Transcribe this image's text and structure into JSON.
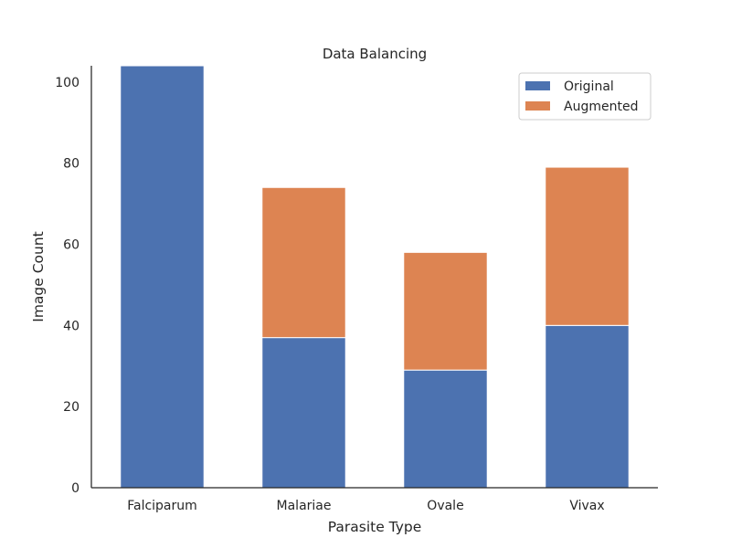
{
  "chart_data": {
    "type": "bar",
    "stacked": true,
    "title": "Data Balancing",
    "xlabel": "Parasite Type",
    "ylabel": "Image Count",
    "categories": [
      "Falciparum",
      "Malariae",
      "Ovale",
      "Vivax"
    ],
    "series": [
      {
        "name": "Original",
        "color": "#4c72b0",
        "values": [
          104,
          37,
          29,
          40
        ]
      },
      {
        "name": "Augmented",
        "color": "#dd8452",
        "values": [
          0,
          37,
          29,
          39
        ]
      }
    ],
    "ylim": [
      0,
      104
    ],
    "yticks": [
      0,
      20,
      40,
      60,
      80,
      100
    ],
    "grid": false,
    "legend": "top-right"
  }
}
